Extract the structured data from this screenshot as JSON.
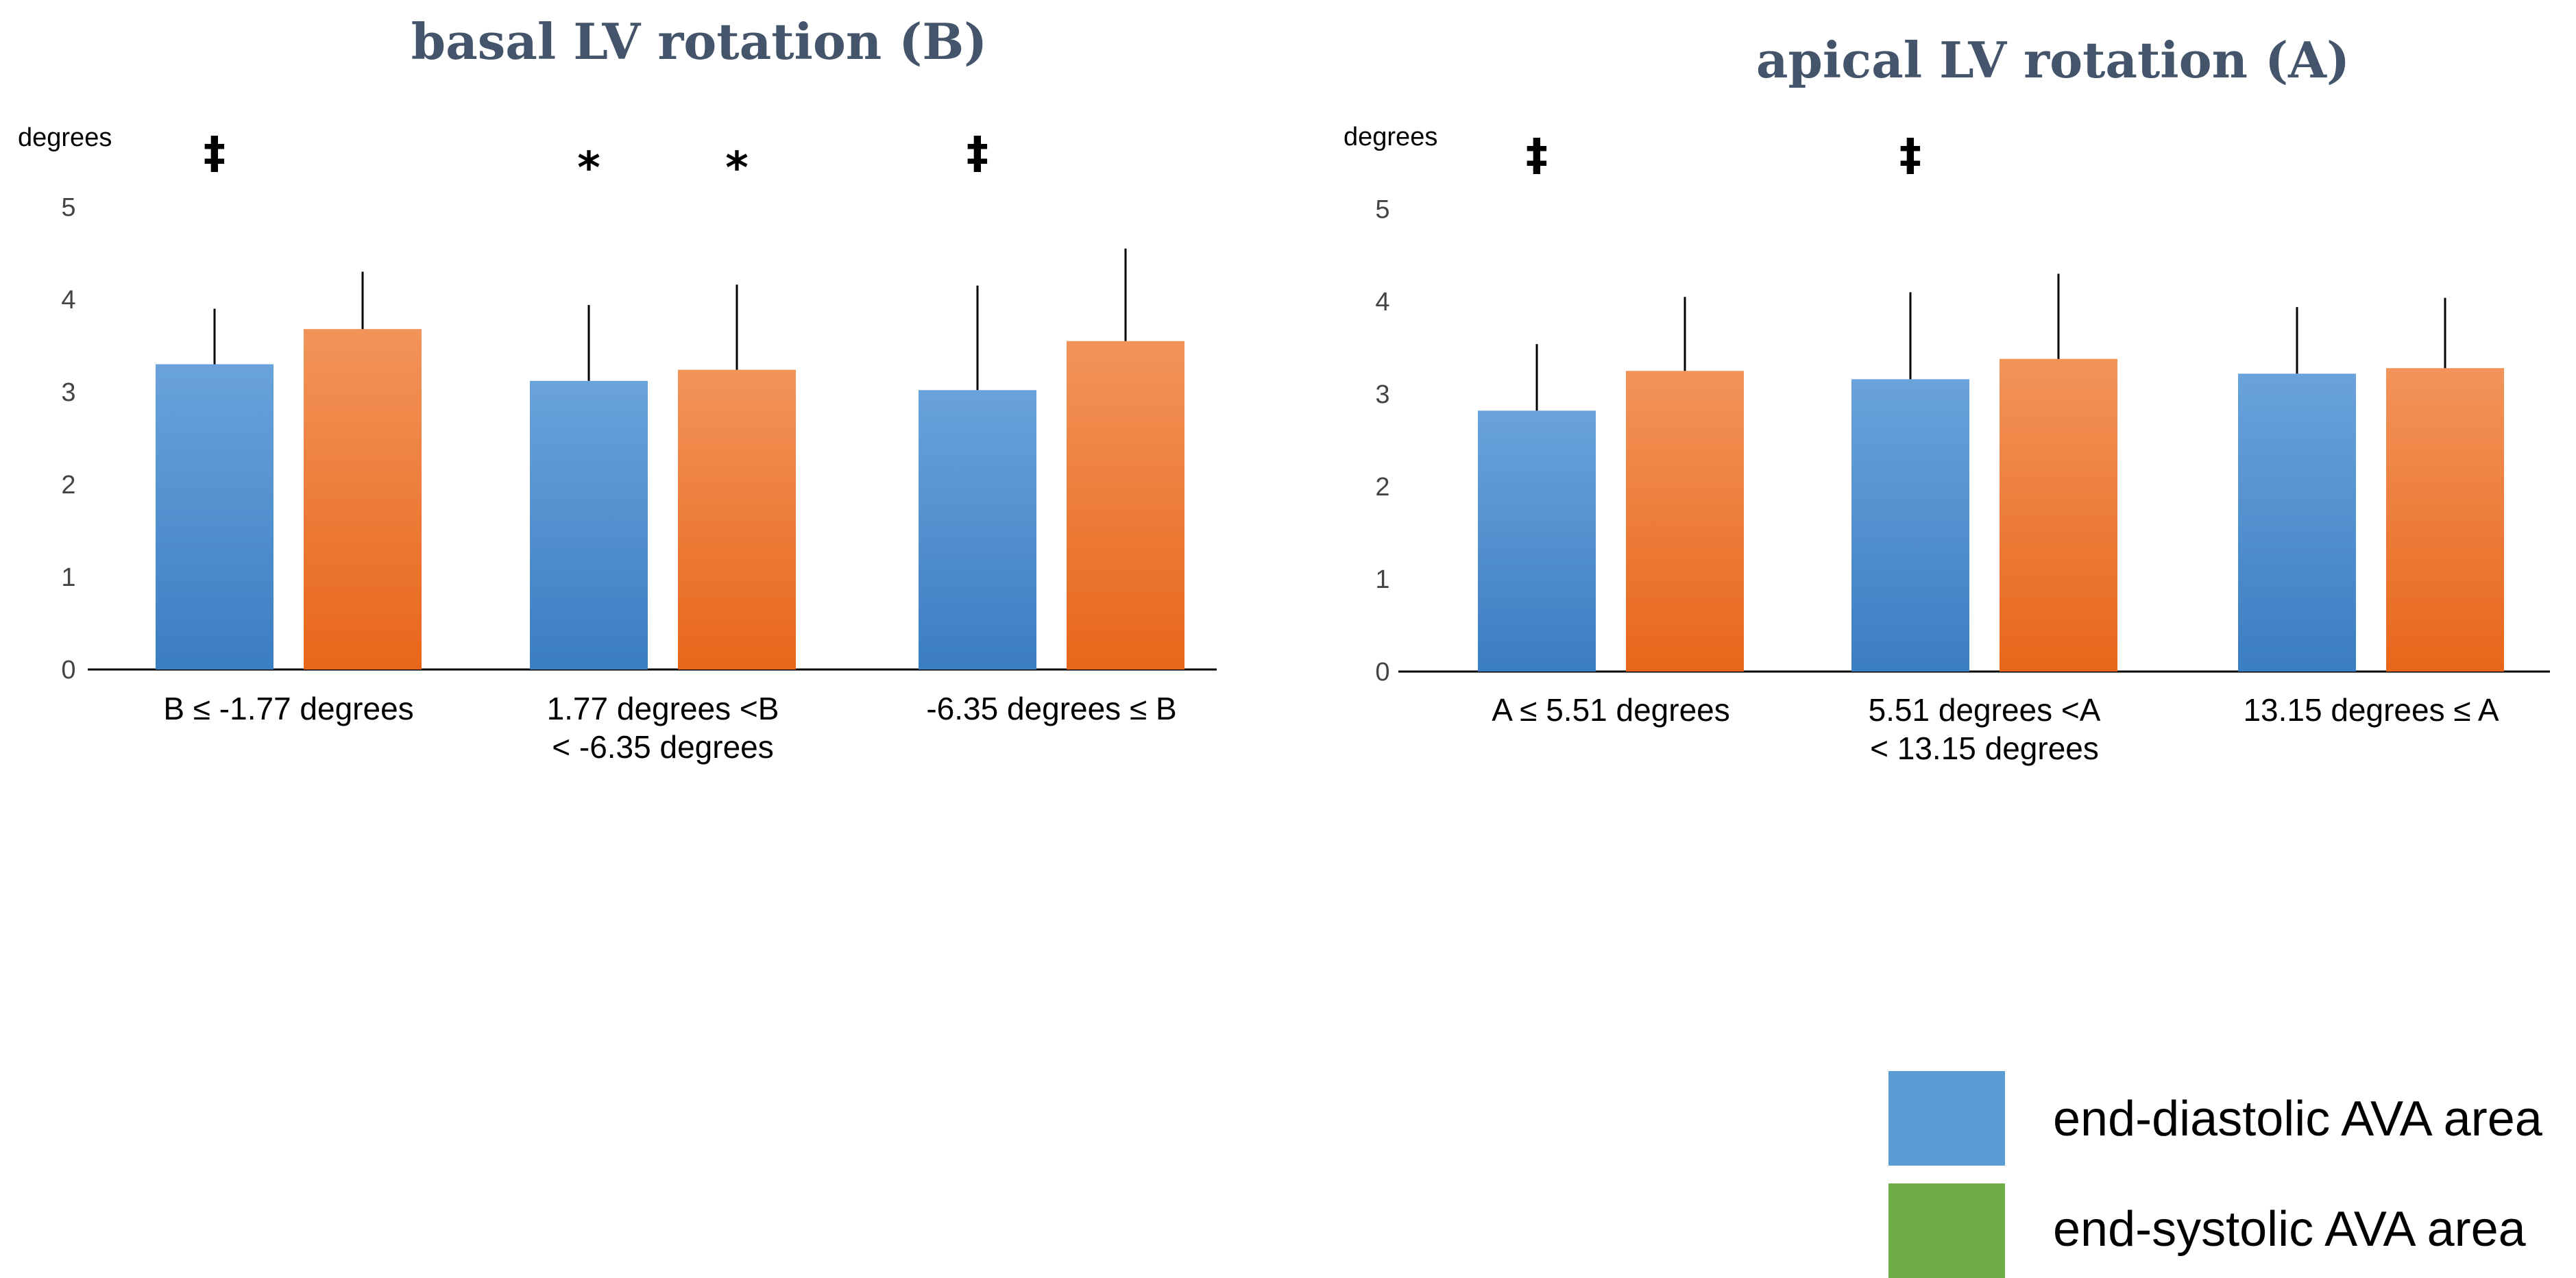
{
  "colors": {
    "blue_top": "#6aa3db",
    "blue_bottom": "#3b7dc2",
    "orange_top": "#f2945a",
    "orange_bottom": "#e8661a",
    "legend_blue": "#5b9bd5",
    "legend_green": "#70ad47",
    "title": "#44546a"
  },
  "legend": [
    {
      "label": "end-diastolic AVA area",
      "color": "#5b9bd5"
    },
    {
      "label": "end-systolic AVA area",
      "color": "#70ad47"
    }
  ],
  "chart_data": [
    {
      "type": "bar",
      "title": "basal LV rotation (B)",
      "ylabel": "degrees",
      "ylim": [
        0,
        5
      ],
      "yticks": [
        "0",
        "1",
        "2",
        "3",
        "4",
        "5"
      ],
      "categories": [
        [
          "B ≤ -1.77 degrees"
        ],
        [
          "1.77 degrees <B",
          "< -6.35 degrees"
        ],
        [
          "-6.35 degrees ≤ B"
        ]
      ],
      "series": [
        {
          "name": "end-diastolic AVA area",
          "values": [
            3.3,
            3.12,
            3.02
          ],
          "error": [
            0.6,
            0.82,
            1.13
          ]
        },
        {
          "name": "end-systolic AVA area",
          "values": [
            3.68,
            3.24,
            3.55
          ],
          "error": [
            0.62,
            0.92,
            1.0
          ]
        }
      ],
      "markers": [
        {
          "category": 0,
          "series": 0,
          "symbol": "‡"
        },
        {
          "category": 1,
          "series": 0,
          "symbol": "*"
        },
        {
          "category": 1,
          "series": 1,
          "symbol": "*"
        },
        {
          "category": 2,
          "series": 0,
          "symbol": "‡"
        }
      ]
    },
    {
      "type": "bar",
      "title": "apical LV rotation (A)",
      "ylabel": "degrees",
      "ylim": [
        0,
        5
      ],
      "yticks": [
        "0",
        "1",
        "2",
        "3",
        "4",
        "5"
      ],
      "categories": [
        [
          "A ≤ 5.51 degrees"
        ],
        [
          "5.51 degrees <A",
          "< 13.15 degrees"
        ],
        [
          "13.15 degrees ≤ A"
        ]
      ],
      "series": [
        {
          "name": "end-diastolic AVA area",
          "values": [
            2.82,
            3.16,
            3.22
          ],
          "error": [
            0.72,
            0.94,
            0.72
          ]
        },
        {
          "name": "end-systolic AVA area",
          "values": [
            3.25,
            3.38,
            3.28
          ],
          "error": [
            0.8,
            0.92,
            0.76
          ]
        }
      ],
      "markers": [
        {
          "category": 0,
          "series": 0,
          "symbol": "‡"
        },
        {
          "category": 1,
          "series": 0,
          "symbol": "‡"
        }
      ]
    }
  ]
}
